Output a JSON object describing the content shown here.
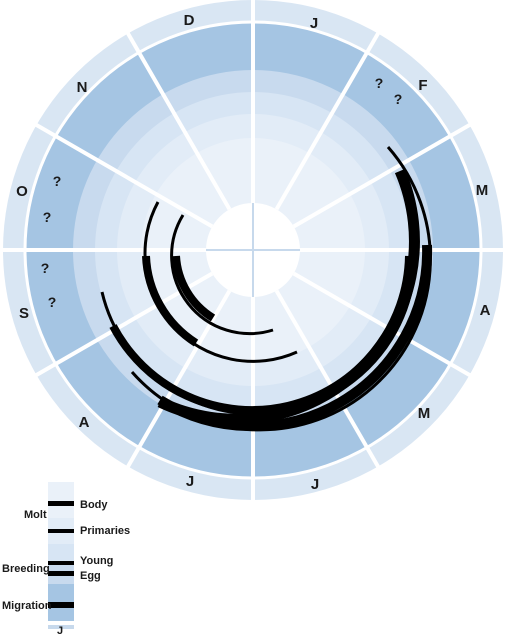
{
  "months": [
    "J",
    "F",
    "M",
    "A",
    "M",
    "J",
    "J",
    "A",
    "S",
    "O",
    "N",
    "D"
  ],
  "ring_labels": {
    "molt": "Molt",
    "body": "Body",
    "primaries": "Primaries",
    "breeding": "Breeding",
    "young": "Young",
    "egg": "Egg",
    "migration": "Migration",
    "month_marker": "J"
  },
  "unknown_marks": [
    "?",
    "?",
    "?",
    "?",
    "?",
    "?"
  ],
  "colors": {
    "migration_ring": "#a5c5e3",
    "egg_ring": "#c8daee",
    "young_ring": "#d7e5f4",
    "primaries_ring": "#e2ecf7",
    "body_ring": "#eaf1f9",
    "outer_band": "#d9e6f3",
    "outer_edge": "#c7d9ec",
    "activity_bar": "#000000"
  }
}
